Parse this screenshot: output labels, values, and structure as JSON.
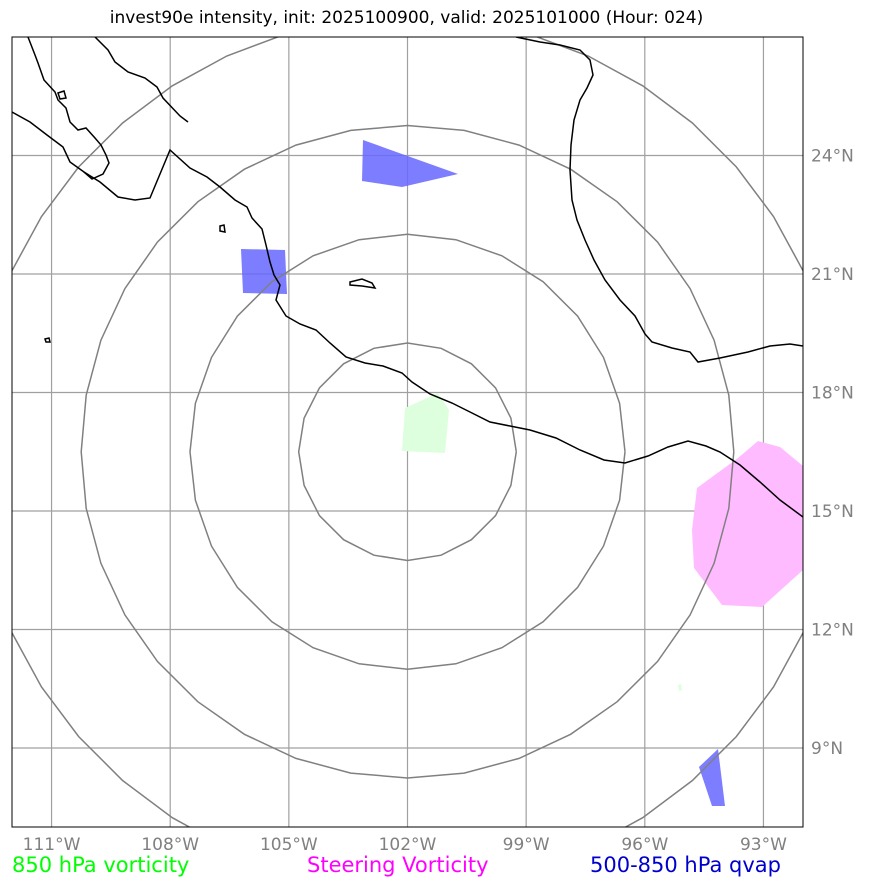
{
  "title": "invest90e intensity, init: 2025100900, valid: 2025101000 (Hour: 024)",
  "map": {
    "extent": {
      "lon": [
        -112,
        -92
      ],
      "lat": [
        7,
        27
      ]
    },
    "lon_ticks": [
      {
        "value": -111,
        "label": "111°W"
      },
      {
        "value": -108,
        "label": "108°W"
      },
      {
        "value": -105,
        "label": "105°W"
      },
      {
        "value": -102,
        "label": "102°W"
      },
      {
        "value": -99,
        "label": "99°W"
      },
      {
        "value": -96,
        "label": "96°W"
      },
      {
        "value": -93,
        "label": "93°W"
      }
    ],
    "lat_ticks": [
      {
        "value": 24,
        "label": "24°N"
      },
      {
        "value": 21,
        "label": "21°N"
      },
      {
        "value": 18,
        "label": "18°N"
      },
      {
        "value": 15,
        "label": "15°N"
      },
      {
        "value": 12,
        "label": "12°N"
      },
      {
        "value": 9,
        "label": "9°N"
      }
    ],
    "storm_center": {
      "lon": -102,
      "lat": 16.5
    },
    "range_rings_deg": [
      2.75,
      5.5,
      8.25,
      11.0
    ],
    "colors": {
      "grid": "#a0a0a0",
      "rings": "#808080",
      "coast": "#000000",
      "vorticity_850": "#ccffcc",
      "steering_vorticity": "#ffaaff",
      "qvap": "#6666ff"
    }
  },
  "legend": {
    "vorticity_label": "850 hPa vorticity",
    "vorticity_color": "#00ff00",
    "steering_label": "Steering Vorticity",
    "steering_color": "#ff00ff",
    "qvap_label": "500-850 hPa qvap",
    "qvap_color": "#0000cc"
  }
}
